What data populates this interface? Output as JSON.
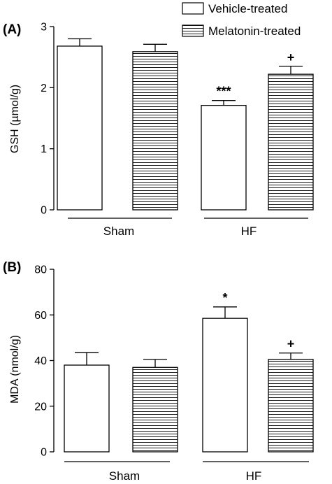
{
  "legend": [
    {
      "label": "Vehicle-treated",
      "fill": "white"
    },
    {
      "label": "Melatonin-treated",
      "fill": "hatched"
    }
  ],
  "chart_data": [
    {
      "type": "bar",
      "panel_label": "(A)",
      "ylabel": "GSH (µmol/g)",
      "ylim": [
        0,
        3
      ],
      "yticks": [
        "0",
        "1",
        "2",
        "3"
      ],
      "groups": [
        "Sham",
        "HF"
      ],
      "series": [
        {
          "name": "Vehicle-treated",
          "values": [
            2.68,
            1.71
          ],
          "errors": [
            0.12,
            0.08
          ],
          "marks": [
            "",
            "***"
          ]
        },
        {
          "name": "Melatonin-treated",
          "values": [
            2.59,
            2.22
          ],
          "errors": [
            0.12,
            0.13
          ],
          "marks": [
            "",
            "+"
          ]
        }
      ]
    },
    {
      "type": "bar",
      "panel_label": "(B)",
      "ylabel": "MDA (nmol/g)",
      "ylim": [
        0,
        80
      ],
      "yticks": [
        "0",
        "20",
        "40",
        "60",
        "80"
      ],
      "groups": [
        "Sham",
        "HF"
      ],
      "series": [
        {
          "name": "Vehicle-treated",
          "values": [
            38.0,
            58.5
          ],
          "errors": [
            5.5,
            5.0
          ],
          "marks": [
            "",
            "*"
          ]
        },
        {
          "name": "Melatonin-treated",
          "values": [
            37.0,
            40.5
          ],
          "errors": [
            3.5,
            2.8
          ],
          "marks": [
            "",
            "+"
          ]
        }
      ]
    }
  ]
}
